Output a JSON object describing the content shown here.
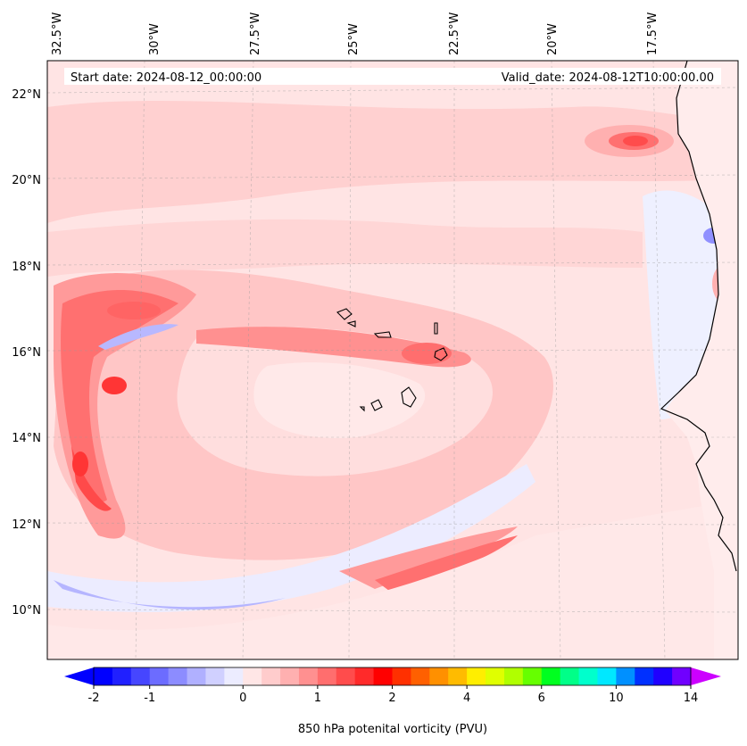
{
  "map": {
    "start_label": "Start date: 2024-08-12_00:00:00",
    "valid_label": "Valid_date: 2024-08-12T10:00:00.00",
    "lon_labels": [
      "32.5°W",
      "30°W",
      "27.5°W",
      "25°W",
      "22.5°W",
      "20°W",
      "17.5°W"
    ],
    "lat_labels": [
      "22°N",
      "20°N",
      "18°N",
      "16°N",
      "14°N",
      "12°N",
      "10°N"
    ],
    "colorbar_title": "850 hPa potenital vorticity (PVU)",
    "colorbar_ticks": [
      "-2",
      "-1",
      "0",
      "1",
      "2",
      "4",
      "6",
      "10",
      "14"
    ],
    "colorbar_colors": [
      "#0000ff",
      "#2020ff",
      "#4646ff",
      "#6c6cff",
      "#8c8cff",
      "#b0b0ff",
      "#d0d0ff",
      "#ececff",
      "#ffe6e6",
      "#ffcccc",
      "#ffb0b0",
      "#ff9090",
      "#ff6e6e",
      "#ff4c4c",
      "#ff2a2a",
      "#ff0000",
      "#ff3000",
      "#ff6000",
      "#ff9000",
      "#ffbb00",
      "#ffee00",
      "#e0ff00",
      "#b0ff00",
      "#66ff00",
      "#00ff20",
      "#00ff88",
      "#00ffcc",
      "#00e8ff",
      "#0090ff",
      "#0030ff",
      "#2000ff",
      "#7000ff"
    ],
    "extend_min_color": "#0000ff",
    "extend_max_color": "#cc00ff"
  }
}
